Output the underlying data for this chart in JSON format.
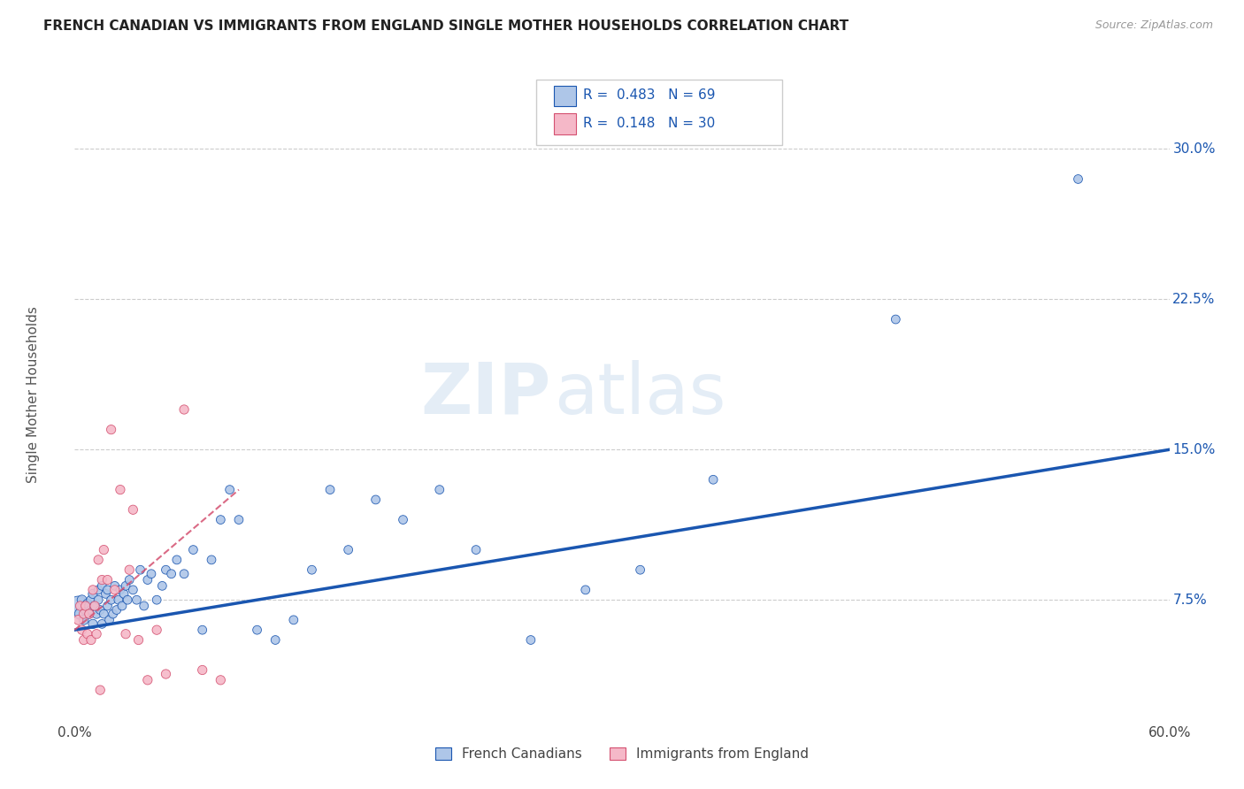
{
  "title": "FRENCH CANADIAN VS IMMIGRANTS FROM ENGLAND SINGLE MOTHER HOUSEHOLDS CORRELATION CHART",
  "source": "Source: ZipAtlas.com",
  "ylabel": "Single Mother Households",
  "ytick_labels": [
    "7.5%",
    "15.0%",
    "22.5%",
    "30.0%"
  ],
  "ytick_values": [
    0.075,
    0.15,
    0.225,
    0.3
  ],
  "xmin": 0.0,
  "xmax": 0.6,
  "ymin": 0.02,
  "ymax": 0.335,
  "legend_r1": "0.483",
  "legend_n1": "69",
  "legend_r2": "0.148",
  "legend_n2": "30",
  "color_blue": "#aec6e8",
  "color_pink": "#f5b8c8",
  "line_blue": "#1a56b0",
  "line_pink": "#d45070",
  "watermark_zip": "ZIP",
  "watermark_atlas": "atlas",
  "background_color": "#ffffff",
  "grid_color": "#cccccc",
  "french_canadians_x": [
    0.002,
    0.003,
    0.004,
    0.005,
    0.006,
    0.007,
    0.008,
    0.008,
    0.009,
    0.009,
    0.01,
    0.01,
    0.011,
    0.012,
    0.013,
    0.013,
    0.014,
    0.015,
    0.015,
    0.016,
    0.017,
    0.018,
    0.018,
    0.019,
    0.02,
    0.021,
    0.022,
    0.023,
    0.024,
    0.025,
    0.026,
    0.027,
    0.028,
    0.029,
    0.03,
    0.032,
    0.034,
    0.036,
    0.038,
    0.04,
    0.042,
    0.045,
    0.048,
    0.05,
    0.053,
    0.056,
    0.06,
    0.065,
    0.07,
    0.075,
    0.08,
    0.085,
    0.09,
    0.1,
    0.11,
    0.12,
    0.13,
    0.14,
    0.15,
    0.165,
    0.18,
    0.2,
    0.22,
    0.25,
    0.28,
    0.31,
    0.35,
    0.45,
    0.55
  ],
  "french_canadians_y": [
    0.072,
    0.068,
    0.075,
    0.065,
    0.07,
    0.073,
    0.072,
    0.068,
    0.075,
    0.07,
    0.063,
    0.078,
    0.072,
    0.068,
    0.08,
    0.075,
    0.07,
    0.063,
    0.082,
    0.068,
    0.078,
    0.072,
    0.08,
    0.065,
    0.075,
    0.068,
    0.082,
    0.07,
    0.075,
    0.08,
    0.072,
    0.078,
    0.082,
    0.075,
    0.085,
    0.08,
    0.075,
    0.09,
    0.072,
    0.085,
    0.088,
    0.075,
    0.082,
    0.09,
    0.088,
    0.095,
    0.088,
    0.1,
    0.06,
    0.095,
    0.115,
    0.13,
    0.115,
    0.06,
    0.055,
    0.065,
    0.09,
    0.13,
    0.1,
    0.125,
    0.115,
    0.13,
    0.1,
    0.055,
    0.08,
    0.09,
    0.135,
    0.215,
    0.285
  ],
  "french_canadians_sizes": [
    250,
    80,
    60,
    60,
    60,
    60,
    55,
    55,
    55,
    55,
    55,
    55,
    55,
    55,
    50,
    50,
    50,
    50,
    50,
    50,
    50,
    50,
    50,
    50,
    50,
    50,
    50,
    50,
    50,
    50,
    50,
    50,
    50,
    50,
    50,
    50,
    50,
    50,
    50,
    50,
    50,
    50,
    50,
    50,
    50,
    50,
    50,
    50,
    50,
    50,
    50,
    50,
    50,
    50,
    50,
    50,
    50,
    50,
    50,
    50,
    50,
    50,
    50,
    50,
    50,
    50,
    50,
    50,
    50
  ],
  "immigrants_england_x": [
    0.002,
    0.003,
    0.004,
    0.005,
    0.005,
    0.006,
    0.007,
    0.008,
    0.009,
    0.01,
    0.011,
    0.012,
    0.013,
    0.014,
    0.015,
    0.016,
    0.018,
    0.02,
    0.022,
    0.025,
    0.028,
    0.03,
    0.032,
    0.035,
    0.04,
    0.045,
    0.05,
    0.06,
    0.07,
    0.08
  ],
  "immigrants_england_y": [
    0.065,
    0.072,
    0.06,
    0.055,
    0.068,
    0.072,
    0.058,
    0.068,
    0.055,
    0.08,
    0.072,
    0.058,
    0.095,
    0.03,
    0.085,
    0.1,
    0.085,
    0.16,
    0.08,
    0.13,
    0.058,
    0.09,
    0.12,
    0.055,
    0.035,
    0.06,
    0.038,
    0.17,
    0.04,
    0.035
  ],
  "immigrants_england_sizes": [
    60,
    55,
    55,
    55,
    55,
    55,
    55,
    55,
    55,
    55,
    55,
    55,
    55,
    55,
    55,
    55,
    55,
    55,
    55,
    55,
    55,
    55,
    55,
    55,
    55,
    55,
    55,
    55,
    55,
    55
  ],
  "blue_line_x": [
    0.0,
    0.6
  ],
  "blue_line_y": [
    0.06,
    0.15
  ],
  "pink_line_x": [
    0.0,
    0.09
  ],
  "pink_line_y": [
    0.06,
    0.13
  ]
}
